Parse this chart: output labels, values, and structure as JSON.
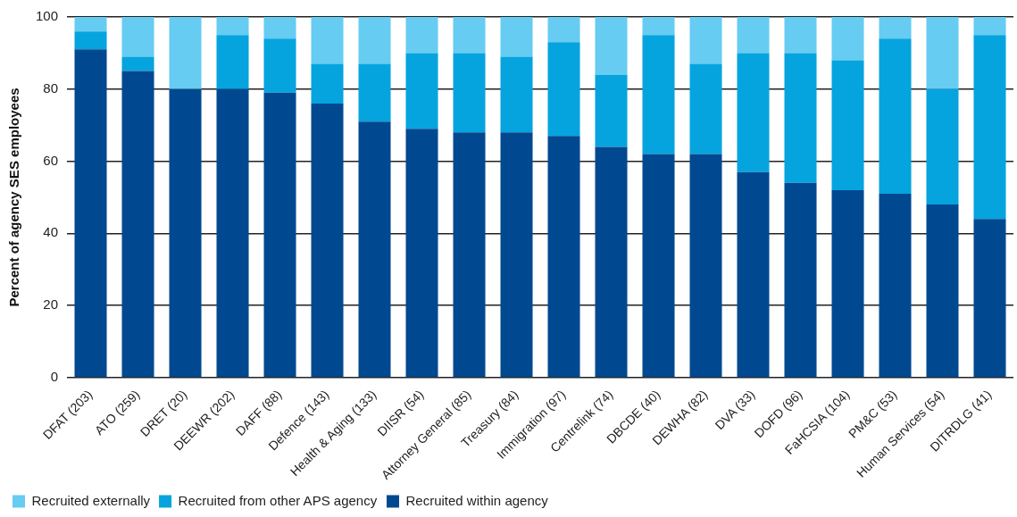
{
  "chart_data": {
    "type": "bar",
    "stacked": true,
    "ylabel": "Percent of agency SES employees",
    "categories": [
      "DFAT (203)",
      "ATO (259)",
      "DRET (20)",
      "DEEWR (202)",
      "DAFF (88)",
      "Defence (143)",
      "Health & Aging (133)",
      "DIISR (54)",
      "Attorney General (85)",
      "Treasury (84)",
      "Immigration (97)",
      "Centrelink (74)",
      "DBCDE (40)",
      "DEWHA (82)",
      "DVA (33)",
      "DOFD (96)",
      "FaHCSIA (104)",
      "PM&C (53)",
      "Human Services (54)",
      "DITRDLG (41)"
    ],
    "series": [
      {
        "name": "Recruited within agency",
        "color": "#004990",
        "values": [
          91,
          85,
          80,
          80,
          79,
          76,
          71,
          69,
          68,
          68,
          67,
          64,
          62,
          62,
          57,
          54,
          52,
          51,
          48,
          44
        ]
      },
      {
        "name": "Recruited from other APS agency",
        "color": "#05a4de",
        "values": [
          5,
          4,
          0,
          15,
          15,
          11,
          16,
          21,
          22,
          21,
          26,
          20,
          33,
          25,
          33,
          36,
          36,
          43,
          32,
          51
        ]
      },
      {
        "name": "Recruited externally",
        "color": "#66ccf2",
        "values": [
          4,
          11,
          20,
          5,
          6,
          13,
          13,
          10,
          10,
          11,
          7,
          16,
          5,
          13,
          10,
          10,
          12,
          6,
          20,
          5
        ]
      }
    ],
    "ylim": [
      0,
      100
    ],
    "yticks": [
      0,
      20,
      40,
      60,
      80,
      100
    ],
    "grid": "y",
    "legend": "bottom left"
  }
}
